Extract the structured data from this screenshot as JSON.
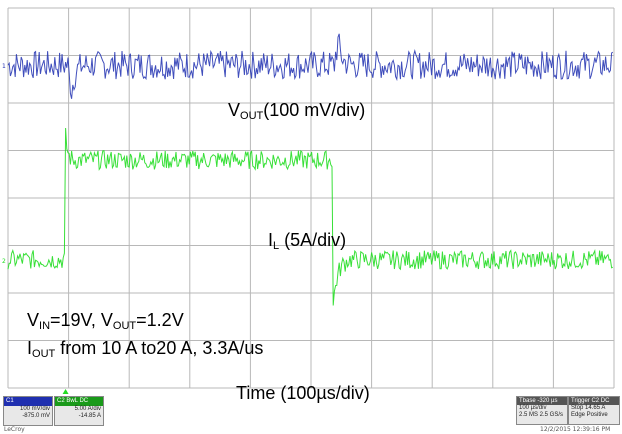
{
  "chart_data": {
    "type": "line",
    "title": "",
    "xlabel": "Time (100µs/div)",
    "ylabel": "",
    "x_divisions": 10,
    "y_divisions": 8,
    "grid": true,
    "series": [
      {
        "name": "VOUT",
        "color": "#1f2fb0",
        "scale": "100 mV/div",
        "baseline_div": 6.8,
        "ripple_div": 0.3,
        "transients": [
          {
            "time_div": 1.05,
            "peak_div": -0.55
          },
          {
            "time_div": 5.45,
            "peak_div": 0.5
          }
        ]
      },
      {
        "name": "IL",
        "color": "#22dd22",
        "scale": "5A/div",
        "low_div": 2.7,
        "high_div": 4.8,
        "ripple_div": 0.2,
        "step_up_time_div": 0.95,
        "step_down_time_div": 5.35,
        "undershoot_div": 1.2
      }
    ]
  },
  "labels": {
    "vout_main": "V",
    "vout_sub": "OUT",
    "vout_rest": "(100 mV/div)",
    "il_main": "I",
    "il_sub": "L",
    "il_rest": " (5A/div)",
    "vin_main": "V",
    "vin_sub": "IN",
    "vin_rest": "=19V, V",
    "vin_sub2": "OUT",
    "vin_rest2": "=1.2V",
    "iout_main": "I",
    "iout_sub": "OUT",
    "iout_rest": " from 10 A to20 A, 3.3A/us",
    "time": "Time (100µs/div)"
  },
  "status": {
    "c1_head": "C1",
    "c1_line1": "100 mV/div",
    "c1_line2": "-875.0 mV",
    "c2_head": "C2 BwL DC",
    "c2_line1": "5.00 A/div",
    "c2_line2": "-14.85 A",
    "brand": "LeCroy",
    "tbase_head": "Tbase -320 µs",
    "tbase_line1": "100 µs/div",
    "tbase_line2": "2.5 MS   2.5 GS/s",
    "trigger_head": "Trigger C2 DC",
    "trigger_line1": "Stop   14.65 A",
    "trigger_line2": "Edge   Positive",
    "timestamp": "12/2/2015 12:39:16 PM"
  }
}
